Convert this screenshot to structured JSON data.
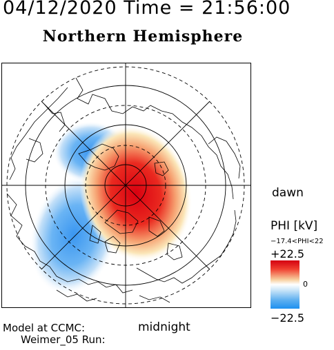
{
  "header": {
    "title": "04/12/2020 Time = 21:56:00",
    "subtitle": "Northern Hemisphere"
  },
  "map": {
    "orientation": {
      "right": "dawn",
      "bottom": "midnight"
    },
    "center_pole": "north",
    "features": [
      "latitude-circles",
      "meridian-lines",
      "coastlines",
      "potential-pattern"
    ],
    "colors": {
      "positive": "#e01010",
      "negative": "#3090f0",
      "neutral": "#ffffff"
    }
  },
  "colorbar": {
    "title": "PHI [kV]",
    "range_text": "−17.4<PHI<22",
    "max_label": "+22.5",
    "mid_label": "0",
    "min_label": "−22.5",
    "max_value": 22.5,
    "min_value": -22.5
  },
  "credits": {
    "line1": "Model at CCMC:",
    "line2": "Weimer_05 Run:"
  }
}
